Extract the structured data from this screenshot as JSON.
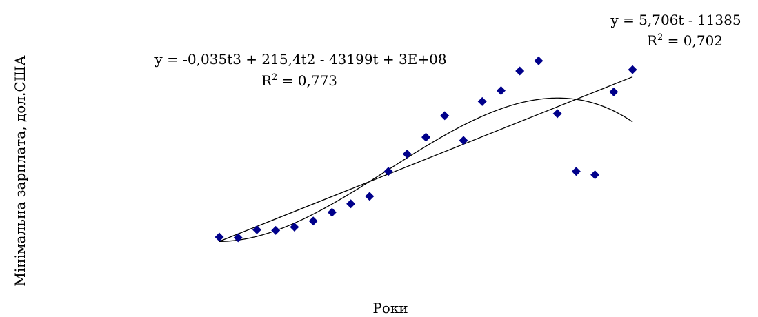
{
  "chart_data": {
    "type": "scatter",
    "title": "",
    "xlabel": "Роки",
    "ylabel": "Мінімальна зарплата, дол.США",
    "marker_color": "#00008B",
    "line_color": "#000000",
    "grid": false,
    "legend": "none",
    "series": [
      {
        "points": [
          {
            "x": 1,
            "y": 0.0
          },
          {
            "x": 2,
            "y": -0.4
          },
          {
            "x": 3,
            "y": 4.6
          },
          {
            "x": 4,
            "y": 4.2
          },
          {
            "x": 5,
            "y": 6.3
          },
          {
            "x": 6,
            "y": 10.1
          },
          {
            "x": 7,
            "y": 15.6
          },
          {
            "x": 8,
            "y": 21.0
          },
          {
            "x": 9,
            "y": 25.7
          },
          {
            "x": 10,
            "y": 41.4
          },
          {
            "x": 11,
            "y": 52.4
          },
          {
            "x": 12,
            "y": 63.0
          },
          {
            "x": 13,
            "y": 76.6
          },
          {
            "x": 14,
            "y": 60.9
          },
          {
            "x": 15,
            "y": 85.5
          },
          {
            "x": 16,
            "y": 92.4
          },
          {
            "x": 17,
            "y": 104.8
          },
          {
            "x": 18,
            "y": 111.2
          },
          {
            "x": 19,
            "y": 77.9
          },
          {
            "x": 20,
            "y": 41.4
          },
          {
            "x": 21,
            "y": 39.3
          },
          {
            "x": 22,
            "y": 91.6
          },
          {
            "x": 23,
            "y": 105.6
          }
        ]
      }
    ],
    "trendlines": [
      {
        "type": "linear",
        "equation": "y = 5,706t - 11385",
        "r2_base": "R",
        "r2_exp": "2",
        "r2_rest": " = 0,702"
      },
      {
        "type": "polynomial",
        "equation": "y = -0,035t3 + 215,4t2 - 43199t + 3E+08",
        "r2_base": "R",
        "r2_exp": "2",
        "r2_rest": " = 0,773"
      }
    ]
  }
}
